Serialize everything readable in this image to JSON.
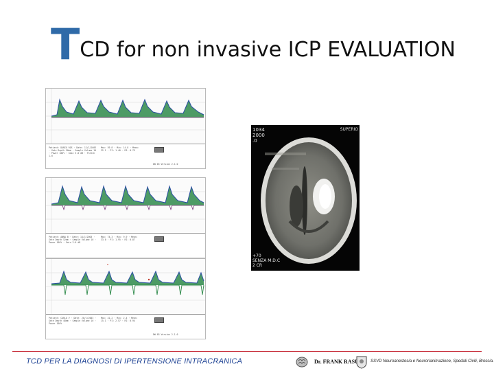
{
  "slide": {
    "title_initial": "T",
    "title_rest": "CD for non invasive ICP EVALUATION"
  },
  "panels": [
    {
      "info_left": "Patient: DANIO ROS · Date: 12/1/2003 · Gate Depth 50mm · Sample Volume 10 · Power 100% · Gain 3.0 dB · Thresh 1.0",
      "info_right": "Max: 59.8 · Min: 14.8 · Mean: 32.1 · PI: 1.40 · RI: 0.75",
      "stamp": "DW 03 Version 2.1.0"
    },
    {
      "info_left": "Patient: ANNA B · Date: 14/1/2003 · Gate Depth 52mm · Sample Volume 10 · Power 100% · Gain 3.0 dB",
      "info_right": "Max: 74.3 · Min: 9.9 · Mean: 33.0 · PI: 1.95 · RI: 0.87",
      "stamp": ""
    },
    {
      "info_left": "Patient: CARLO V · Date: 20/1/2003 · Gate Depth 48mm · Sample Volume 10 · Power 100%",
      "info_right": "Max: 41.2 · Min: 2.4 · Mean: 15.1 · PI: 2.57 · RI: 0.94",
      "stamp": "DW 03 Version 2.1.0"
    }
  ],
  "ct": {
    "overlay_top_left": "1034\n2000\n.0",
    "overlay_top_right": "SUPERIO",
    "overlay_bottom_left": "+70\nSENZA M.D.C\n2 CR"
  },
  "footer": {
    "left": "TCD PER LA DIAGNOSI DI IPERTENSIONE INTRACRANICA",
    "name": "Dr. FRANK RASULO",
    "dept": "SSVD Neuroanestesia e Neurorianimazione, Spedali Civili, Brescia.",
    "line_color": "#c72d3a"
  }
}
